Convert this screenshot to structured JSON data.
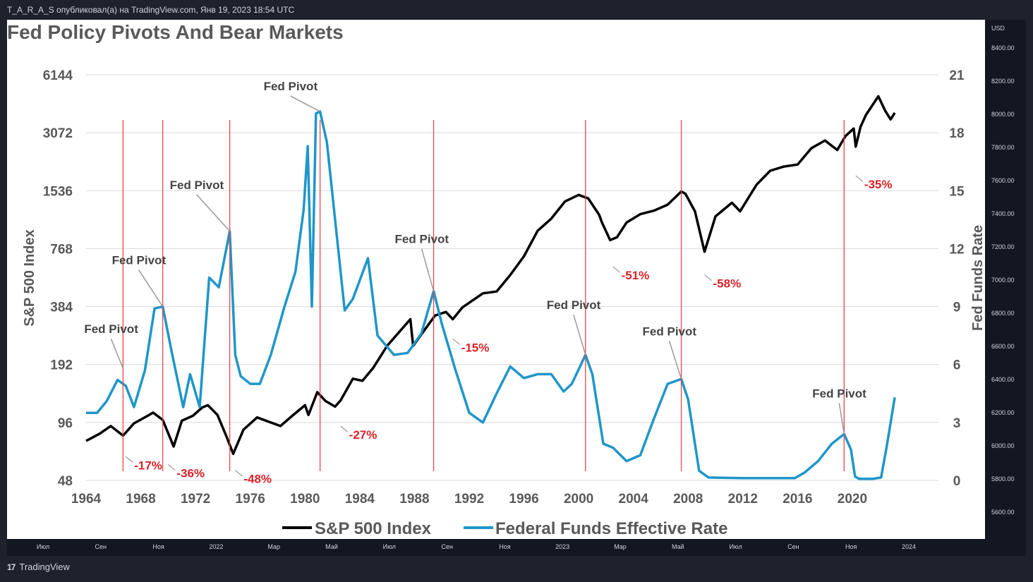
{
  "topbar": {
    "text": "T_A_R_A_S опубликовал(а) на TradingView.com, Янв 19, 2023 18:54 UTC"
  },
  "brand": {
    "name": "TradingView"
  },
  "price_axis": {
    "currency": "USD",
    "labels": [
      "8400.00",
      "8200.00",
      "8000.00",
      "7800.00",
      "7600.00",
      "7400.00",
      "7200.00",
      "7000.00",
      "6800.00",
      "6600.00",
      "6400.00",
      "6200.00",
      "6000.00",
      "5800.00",
      "5600.00"
    ]
  },
  "time_axis": {
    "labels": [
      "Июл",
      "Сен",
      "Ноя",
      "2022",
      "Мар",
      "Май",
      "Июл",
      "Сен",
      "Ноя",
      "2023",
      "Мар",
      "Май",
      "Июл",
      "Сен",
      "Ноя",
      "2024"
    ]
  },
  "chart_data": {
    "type": "line",
    "title": "Fed Policy Pivots And Bear Markets",
    "ylabel": "S&P 500 Index",
    "y2label": "Fed Funds Rate",
    "y_scale": "log2",
    "y_ticks": [
      "6144",
      "3072",
      "1536",
      "768",
      "384",
      "192",
      "96",
      "48"
    ],
    "y_ticks_values": [
      6144,
      3072,
      1536,
      768,
      384,
      192,
      96,
      48
    ],
    "y2_ticks": [
      "21",
      "18",
      "15",
      "12",
      "9",
      "6",
      "3",
      "0"
    ],
    "y2_ticks_values": [
      21,
      18,
      15,
      12,
      9,
      6,
      3,
      0
    ],
    "x_ticks": [
      "1964",
      "1968",
      "1972",
      "1976",
      "1980",
      "1984",
      "1988",
      "1992",
      "1996",
      "2000",
      "2004",
      "2008",
      "2012",
      "2016",
      "2020"
    ],
    "xlim": [
      1964,
      2023.2
    ],
    "ylim": [
      48,
      6144
    ],
    "y2lim": [
      0,
      21
    ],
    "legend": {
      "position": "bottom",
      "items": [
        "S&P 500 Index",
        "Federal Funds Effective Rate"
      ]
    },
    "series": [
      {
        "name": "S&P 500 Index",
        "color": "#000000",
        "axis": "left",
        "x": [
          1964,
          1965,
          1965.8,
          1966.7,
          1967.5,
          1968.5,
          1968.9,
          1969.6,
          1970.4,
          1971,
          1971.8,
          1972.5,
          1972.9,
          1973.6,
          1974.3,
          1974.75,
          1975.5,
          1976.5,
          1977.5,
          1978.2,
          1979,
          1980,
          1980.25,
          1980.9,
          1981.5,
          1982.2,
          1982.6,
          1983.5,
          1984.2,
          1985,
          1986,
          1987.7,
          1987.9,
          1988.5,
          1989.5,
          1990.3,
          1990.8,
          1991.5,
          1993,
          1994,
          1995,
          1996,
          1997,
          1998,
          1999,
          2000,
          2000.7,
          2001.5,
          2001.7,
          2002.3,
          2002.8,
          2003.5,
          2004.5,
          2005.5,
          2006.5,
          2007.5,
          2007.8,
          2008.5,
          2009.2,
          2010,
          2011.2,
          2011.8,
          2013,
          2014,
          2015,
          2016,
          2017,
          2018,
          2018.9,
          2019.5,
          2020.1,
          2020.25,
          2020.6,
          2021,
          2021.9,
          2022.4,
          2022.8,
          2023.1
        ],
        "y": [
          77,
          84,
          92,
          82,
          95,
          104,
          108,
          99,
          72,
          98,
          104,
          115,
          118,
          105,
          80,
          66,
          88,
          102,
          96,
          92,
          103,
          118,
          105,
          138,
          124,
          116,
          125,
          162,
          158,
          185,
          240,
          330,
          240,
          275,
          345,
          360,
          330,
          380,
          450,
          460,
          560,
          700,
          950,
          1100,
          1350,
          1460,
          1400,
          1150,
          1050,
          850,
          880,
          1050,
          1160,
          1210,
          1300,
          1520,
          1480,
          1200,
          740,
          1130,
          1330,
          1200,
          1650,
          1950,
          2050,
          2100,
          2550,
          2800,
          2500,
          2950,
          3230,
          2600,
          3300,
          3800,
          4750,
          4000,
          3600,
          3900
        ]
      },
      {
        "name": "Federal Funds Effective Rate",
        "color": "#1f96c8",
        "axis": "right",
        "x": [
          1964,
          1964.8,
          1965.5,
          1966.3,
          1966.9,
          1967.5,
          1968.3,
          1969,
          1969.6,
          1970.3,
          1971.1,
          1971.6,
          1972.3,
          1973,
          1973.7,
          1974.5,
          1974.9,
          1975.3,
          1976,
          1976.7,
          1977.5,
          1978.5,
          1979.3,
          1979.9,
          1980.2,
          1980.5,
          1980.8,
          1981.1,
          1981.6,
          1982.2,
          1982.9,
          1983.5,
          1984.6,
          1985.3,
          1986.5,
          1987.5,
          1988.5,
          1989.4,
          1990,
          1991,
          1992,
          1993,
          1994,
          1995,
          1996,
          1997,
          1998,
          1998.9,
          1999.5,
          2000.5,
          2001,
          2001.8,
          2002.5,
          2003.5,
          2004.5,
          2005.5,
          2006.5,
          2007.5,
          2008,
          2008.8,
          2009.5,
          2012,
          2015.8,
          2016.5,
          2017.5,
          2018.5,
          2019.4,
          2019.9,
          2020.2,
          2020.5,
          2021.5,
          2022.1,
          2022.5,
          2023.1
        ],
        "y": [
          3.5,
          3.5,
          4.1,
          5.2,
          4.9,
          3.8,
          5.7,
          8.9,
          9.0,
          6.5,
          3.8,
          5.5,
          3.8,
          10.5,
          10.0,
          12.9,
          6.5,
          5.4,
          5.0,
          5.0,
          6.5,
          9.0,
          10.8,
          14.0,
          17.3,
          9.0,
          19.0,
          19.1,
          17.5,
          13.5,
          8.8,
          9.4,
          11.5,
          7.5,
          6.5,
          6.6,
          7.6,
          9.8,
          8.1,
          5.7,
          3.5,
          3.0,
          4.5,
          5.9,
          5.3,
          5.5,
          5.5,
          4.6,
          5.0,
          6.5,
          5.5,
          1.9,
          1.7,
          1.0,
          1.3,
          3.2,
          5.0,
          5.25,
          4.2,
          0.5,
          0.15,
          0.12,
          0.12,
          0.4,
          1.0,
          1.9,
          2.4,
          1.6,
          0.2,
          0.08,
          0.08,
          0.15,
          1.7,
          4.3
        ]
      }
    ],
    "annotations": [
      {
        "label": "Fed Pivot",
        "x": 1966.7,
        "y2": 5.8
      },
      {
        "label": "Fed Pivot",
        "x": 1969.6,
        "y2": 9.0
      },
      {
        "label": "Fed Pivot",
        "x": 1974.5,
        "y2": 12.9
      },
      {
        "label": "Fed Pivot",
        "x": 1981.1,
        "y2": 19.1
      },
      {
        "label": "Fed Pivot",
        "x": 1989.4,
        "y2": 9.8
      },
      {
        "label": "Fed Pivot",
        "x": 2000.5,
        "y2": 6.5
      },
      {
        "label": "Fed Pivot",
        "x": 2007.5,
        "y2": 5.25
      },
      {
        "label": "Fed Pivot",
        "x": 2019.4,
        "y2": 2.4
      }
    ],
    "drawdowns": [
      "-17%",
      "-36%",
      "-48%",
      "-27%",
      "-15%",
      "-51%",
      "-58%",
      "-35%"
    ]
  }
}
